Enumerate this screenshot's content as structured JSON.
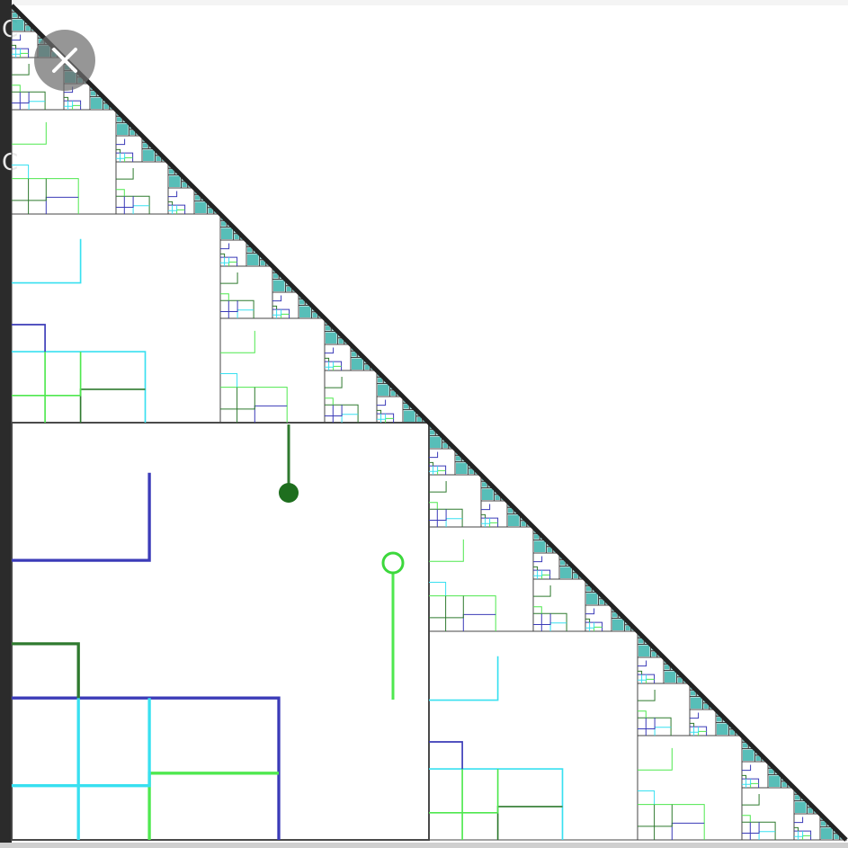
{
  "viewer": {
    "close_icon": "close-icon"
  },
  "diagram": {
    "colors": {
      "frame": "#444444",
      "blue": "#3b3bb8",
      "cyan": "#38e0f0",
      "light_green": "#4fe84f",
      "dark_green": "#2f7a2f",
      "node_filled": "#1e6e1e",
      "node_open": "#3cd83c",
      "teal_fill": "#1fa8a0"
    }
  }
}
